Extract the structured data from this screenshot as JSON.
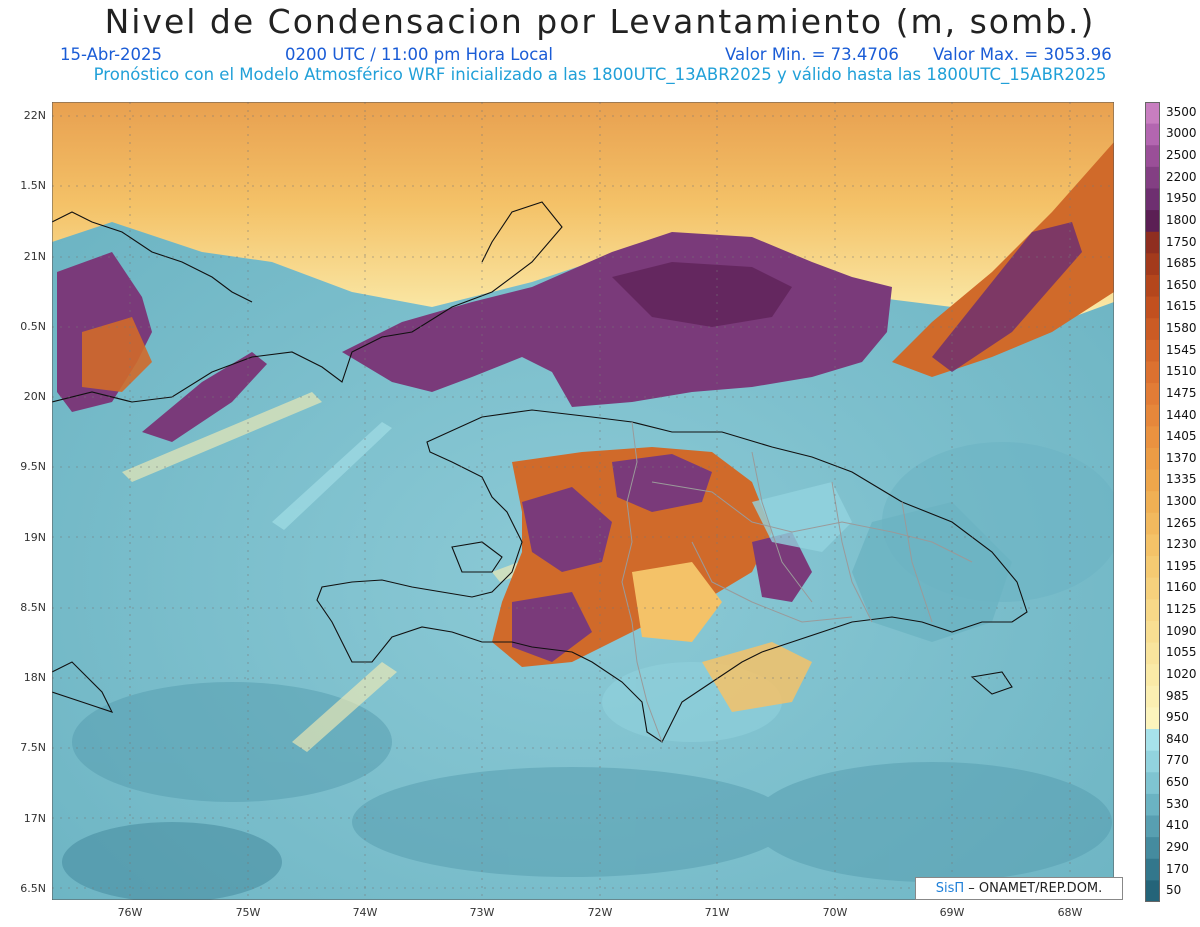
{
  "title": "Nivel de Condensacion por Levantamiento (m, somb.)",
  "date_label": "15-Abr-2025",
  "time_label": "0200 UTC / 11:00 pm Hora Local",
  "min_label": "Valor Min. = 73.4706",
  "max_label": "Valor Max. = 3053.96",
  "forecast_label": "Pronóstico con el Modelo Atmosférico WRF inicializado a las 1800UTC_13ABR2025 y válido hasta las  1800UTC_15ABR2025",
  "credit": {
    "brand": "SisΠ",
    "text": " – ONAMET/REP.DOM."
  },
  "lat_labels": [
    "22N",
    "1.5N",
    "21N",
    "0.5N",
    "20N",
    "9.5N",
    "19N",
    "8.5N",
    "18N",
    "7.5N",
    "17N",
    "6.5N"
  ],
  "lon_labels": [
    "76W",
    "75W",
    "74W",
    "73W",
    "72W",
    "71W",
    "70W",
    "69W",
    "68W"
  ],
  "legend": {
    "labels": [
      "3500",
      "3000",
      "2500",
      "2200",
      "1950",
      "1800",
      "1750",
      "1685",
      "1650",
      "1615",
      "1580",
      "1545",
      "1510",
      "1475",
      "1440",
      "1405",
      "1370",
      "1335",
      "1300",
      "1265",
      "1230",
      "1195",
      "1160",
      "1125",
      "1090",
      "1055",
      "1020",
      "985",
      "950",
      "840",
      "770",
      "650",
      "530",
      "410",
      "290",
      "170",
      "50"
    ],
    "colors": [
      "#c87ec0",
      "#b366b0",
      "#9a4f98",
      "#833f83",
      "#6e2f70",
      "#5b1f54",
      "#8f2e20",
      "#a33a1c",
      "#b4461c",
      "#c2501f",
      "#cb5b24",
      "#d4662a",
      "#dc7130",
      "#e27c36",
      "#e6873b",
      "#ea9240",
      "#ec9c45",
      "#eea64b",
      "#f0b054",
      "#f2b95e",
      "#f4c268",
      "#f5ca72",
      "#f6d17d",
      "#f7d888",
      "#f8de92",
      "#f9e49d",
      "#faeaa7",
      "#fbefb2",
      "#fcf4bd",
      "#a7e2ea",
      "#92d3de",
      "#7fc4d1",
      "#6bb3c2",
      "#589fb1",
      "#458b9f",
      "#33778c",
      "#246479"
    ]
  },
  "colors": {
    "ocean": "#7fc4d1",
    "north_yellow": "#f5ca72",
    "purple": "#7a3a7a",
    "orange": "#d06a2a",
    "coast": "#111111",
    "border": "#9a9a9a"
  }
}
